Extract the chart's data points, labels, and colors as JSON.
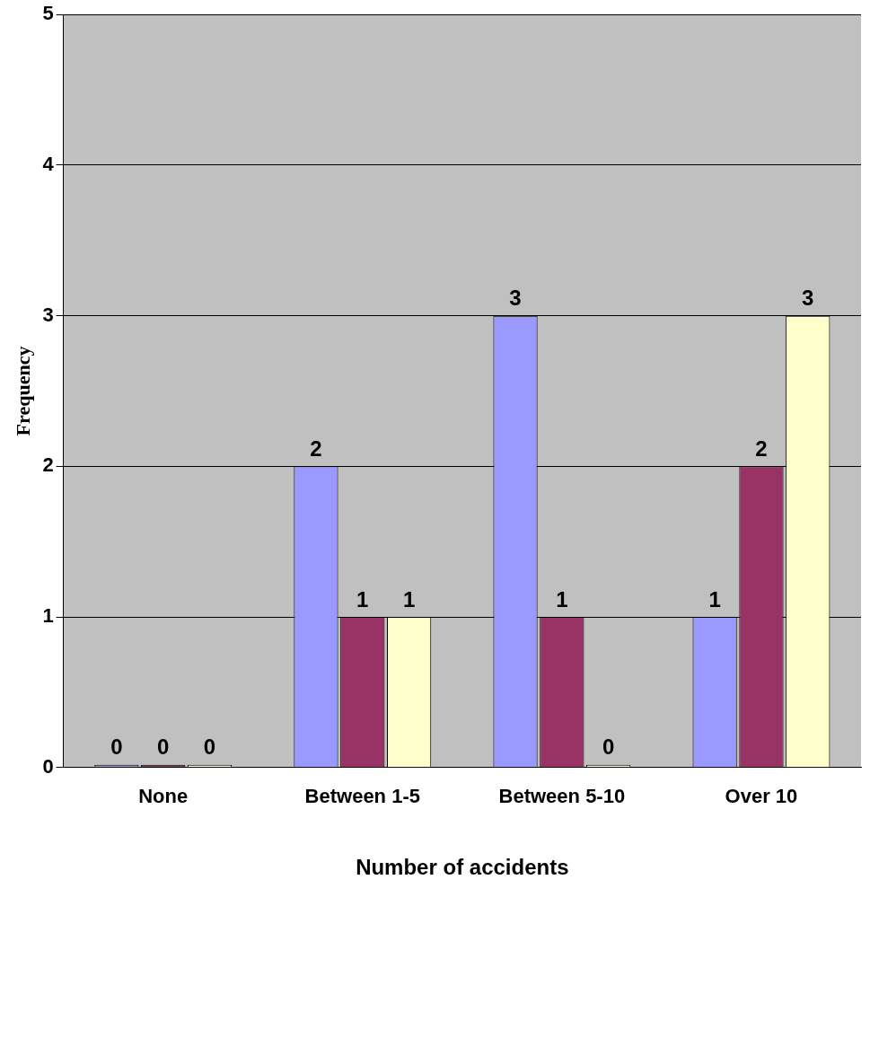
{
  "chart_data": {
    "type": "bar",
    "xlabel": "Number of accidents",
    "ylabel": "Frequency",
    "categories": [
      "None",
      "Between 1-5",
      "Between 5-10",
      "Over 10"
    ],
    "series": [
      {
        "color": "#9999ff",
        "values": [
          0,
          2,
          3,
          1
        ]
      },
      {
        "color": "#993366",
        "values": [
          0,
          1,
          1,
          2
        ]
      },
      {
        "color": "#ffffcc",
        "values": [
          0,
          1,
          0,
          3
        ]
      }
    ],
    "ylim": [
      0,
      5
    ],
    "yticks": [
      0,
      1,
      2,
      3,
      4,
      5
    ],
    "grid": "y",
    "data_labels": true
  }
}
